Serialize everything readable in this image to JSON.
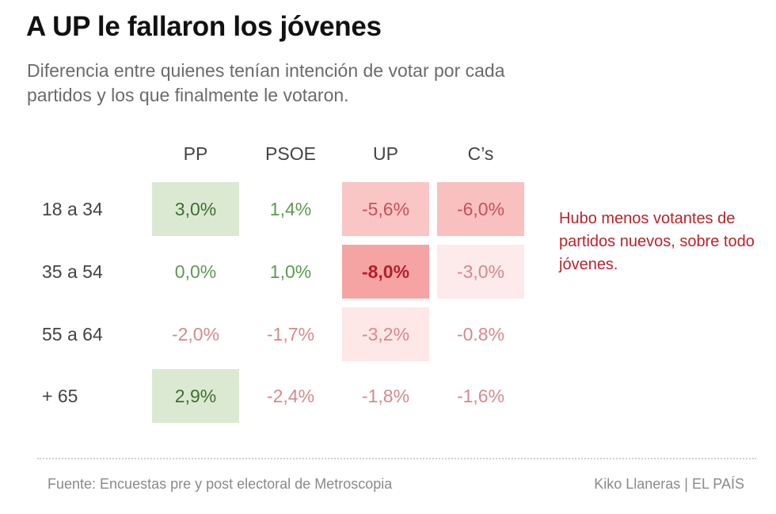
{
  "header": {
    "title": "A UP le fallaron los jóvenes",
    "subtitle": "Diferencia entre quienes tenían intención de votar por cada partidos y los que finalmente le votaron."
  },
  "chart_data": {
    "type": "table",
    "title": "A UP le fallaron los jóvenes",
    "subtitle": "Diferencia entre quienes tenían intención de votar por cada partidos y los que finalmente le votaron.",
    "columns": [
      "PP",
      "PSOE",
      "UP",
      "C’s"
    ],
    "rows": [
      {
        "label": "18 a 34",
        "values": [
          3.0,
          1.4,
          -5.6,
          -6.0
        ],
        "display": [
          "3,0%",
          "1,4%",
          "-5,6%",
          "-6,0%"
        ]
      },
      {
        "label": "35 a 54",
        "values": [
          0.0,
          1.0,
          -8.0,
          -3.0
        ],
        "display": [
          "0,0%",
          "1,0%",
          "-8,0%",
          "-3,0%"
        ]
      },
      {
        "label": "55 a 64",
        "values": [
          -2.0,
          -1.7,
          -3.2,
          -0.8
        ],
        "display": [
          "-2,0%",
          "-1,7%",
          "-3,2%",
          "-0.8%"
        ]
      },
      {
        "label": "+ 65",
        "values": [
          2.9,
          -2.4,
          -1.8,
          -1.6
        ],
        "display": [
          "2,9%",
          "-2,4%",
          "-1,8%",
          "-1,6%"
        ]
      }
    ],
    "unit": "%"
  },
  "annotation": {
    "text": "Hubo menos votantes de partidos nuevos, sobre todo jóvenes."
  },
  "footer": {
    "source": "Fuente: Encuestas pre y post electoral de Metroscopia",
    "credit": "Kiko Llaneras  |  EL PAÍS"
  },
  "colors": {
    "positive_text": "#5e9a4e",
    "positive_text_strong": "#3f6f31",
    "positive_fill": "#dbe9d2",
    "negative_text": "#d48a8e",
    "negative_text_mid": "#c8505a",
    "negative_text_strong": "#b3202b",
    "negative_fill": "#f6a3a3",
    "annotation": "#b8242b"
  }
}
